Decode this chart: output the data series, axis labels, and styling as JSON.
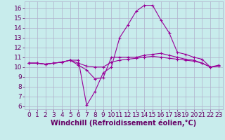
{
  "xlabel": "Windchill (Refroidissement éolien,°C)",
  "background_color": "#c8ecec",
  "grid_color": "#b0b0cc",
  "line_color": "#990099",
  "xlim": [
    -0.5,
    23.5
  ],
  "ylim": [
    5.7,
    16.7
  ],
  "xticks": [
    0,
    1,
    2,
    3,
    4,
    5,
    6,
    7,
    8,
    9,
    10,
    11,
    12,
    13,
    14,
    15,
    16,
    17,
    18,
    19,
    20,
    21,
    22,
    23
  ],
  "yticks": [
    6,
    7,
    8,
    9,
    10,
    11,
    12,
    13,
    14,
    15,
    16
  ],
  "hours": [
    0,
    1,
    2,
    3,
    4,
    5,
    6,
    7,
    8,
    9,
    10,
    11,
    12,
    13,
    14,
    15,
    16,
    17,
    18,
    19,
    20,
    21,
    22,
    23
  ],
  "series": [
    [
      10.4,
      10.4,
      10.3,
      10.4,
      10.5,
      10.7,
      10.7,
      6.1,
      7.5,
      9.4,
      10.0,
      13.0,
      14.3,
      15.7,
      16.3,
      16.3,
      14.8,
      13.5,
      11.5,
      11.3,
      11.0,
      10.8,
      10.0,
      10.2
    ],
    [
      10.4,
      10.4,
      10.3,
      10.4,
      10.5,
      10.7,
      10.2,
      9.7,
      8.8,
      8.9,
      11.0,
      11.0,
      11.0,
      11.0,
      11.2,
      11.3,
      11.4,
      11.2,
      11.0,
      10.8,
      10.7,
      10.4,
      10.0,
      10.1
    ],
    [
      10.4,
      10.4,
      10.3,
      10.4,
      10.5,
      10.7,
      10.4,
      10.1,
      10.0,
      10.0,
      10.5,
      10.7,
      10.8,
      10.9,
      11.0,
      11.1,
      11.0,
      10.9,
      10.8,
      10.7,
      10.6,
      10.4,
      10.0,
      10.1
    ]
  ],
  "font_color": "#660066",
  "tick_fontsize": 6.5,
  "label_fontsize": 7
}
